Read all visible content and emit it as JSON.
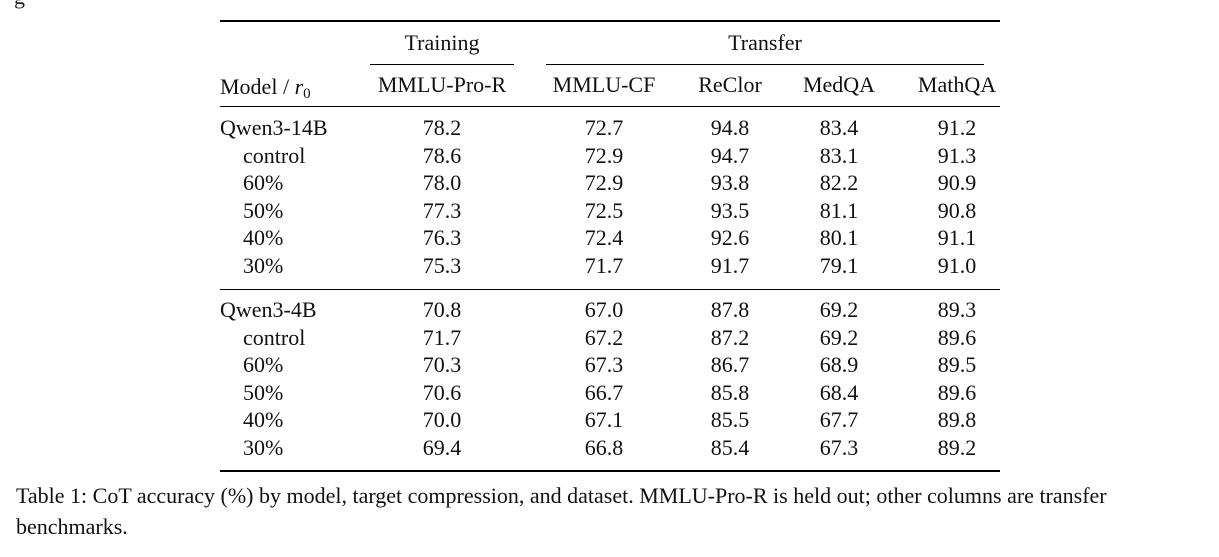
{
  "fragment_top": "g",
  "table": {
    "groups": [
      {
        "label": "Training",
        "span": [
          1,
          1
        ]
      },
      {
        "label": "Transfer",
        "span": [
          2,
          5
        ]
      }
    ],
    "header": {
      "model_label": "Model / ",
      "model_var": "r",
      "model_sub": "0",
      "columns": [
        "MMLU-Pro-R",
        "MMLU-CF",
        "ReClor",
        "MedQA",
        "MathQA"
      ]
    },
    "blocks": [
      {
        "model": "Qwen3-14B",
        "values": [
          "78.2",
          "72.7",
          "94.8",
          "83.4",
          "91.2"
        ],
        "rows": [
          {
            "label": "control",
            "values": [
              "78.6",
              "72.9",
              "94.7",
              "83.1",
              "91.3"
            ]
          },
          {
            "label": "60%",
            "values": [
              "78.0",
              "72.9",
              "93.8",
              "82.2",
              "90.9"
            ]
          },
          {
            "label": "50%",
            "values": [
              "77.3",
              "72.5",
              "93.5",
              "81.1",
              "90.8"
            ]
          },
          {
            "label": "40%",
            "values": [
              "76.3",
              "72.4",
              "92.6",
              "80.1",
              "91.1"
            ]
          },
          {
            "label": "30%",
            "values": [
              "75.3",
              "71.7",
              "91.7",
              "79.1",
              "91.0"
            ]
          }
        ]
      },
      {
        "model": "Qwen3-4B",
        "values": [
          "70.8",
          "67.0",
          "87.8",
          "69.2",
          "89.3"
        ],
        "rows": [
          {
            "label": "control",
            "values": [
              "71.7",
              "67.2",
              "87.2",
              "69.2",
              "89.6"
            ]
          },
          {
            "label": "60%",
            "values": [
              "70.3",
              "67.3",
              "86.7",
              "68.9",
              "89.5"
            ]
          },
          {
            "label": "50%",
            "values": [
              "70.6",
              "66.7",
              "85.8",
              "68.4",
              "89.6"
            ]
          },
          {
            "label": "40%",
            "values": [
              "70.0",
              "67.1",
              "85.5",
              "67.7",
              "89.8"
            ]
          },
          {
            "label": "30%",
            "values": [
              "69.4",
              "66.8",
              "85.4",
              "67.3",
              "89.2"
            ]
          }
        ]
      }
    ]
  },
  "caption": "Table 1: CoT accuracy (%) by model, target compression, and dataset. MMLU-Pro-R is held out; other columns are transfer benchmarks."
}
